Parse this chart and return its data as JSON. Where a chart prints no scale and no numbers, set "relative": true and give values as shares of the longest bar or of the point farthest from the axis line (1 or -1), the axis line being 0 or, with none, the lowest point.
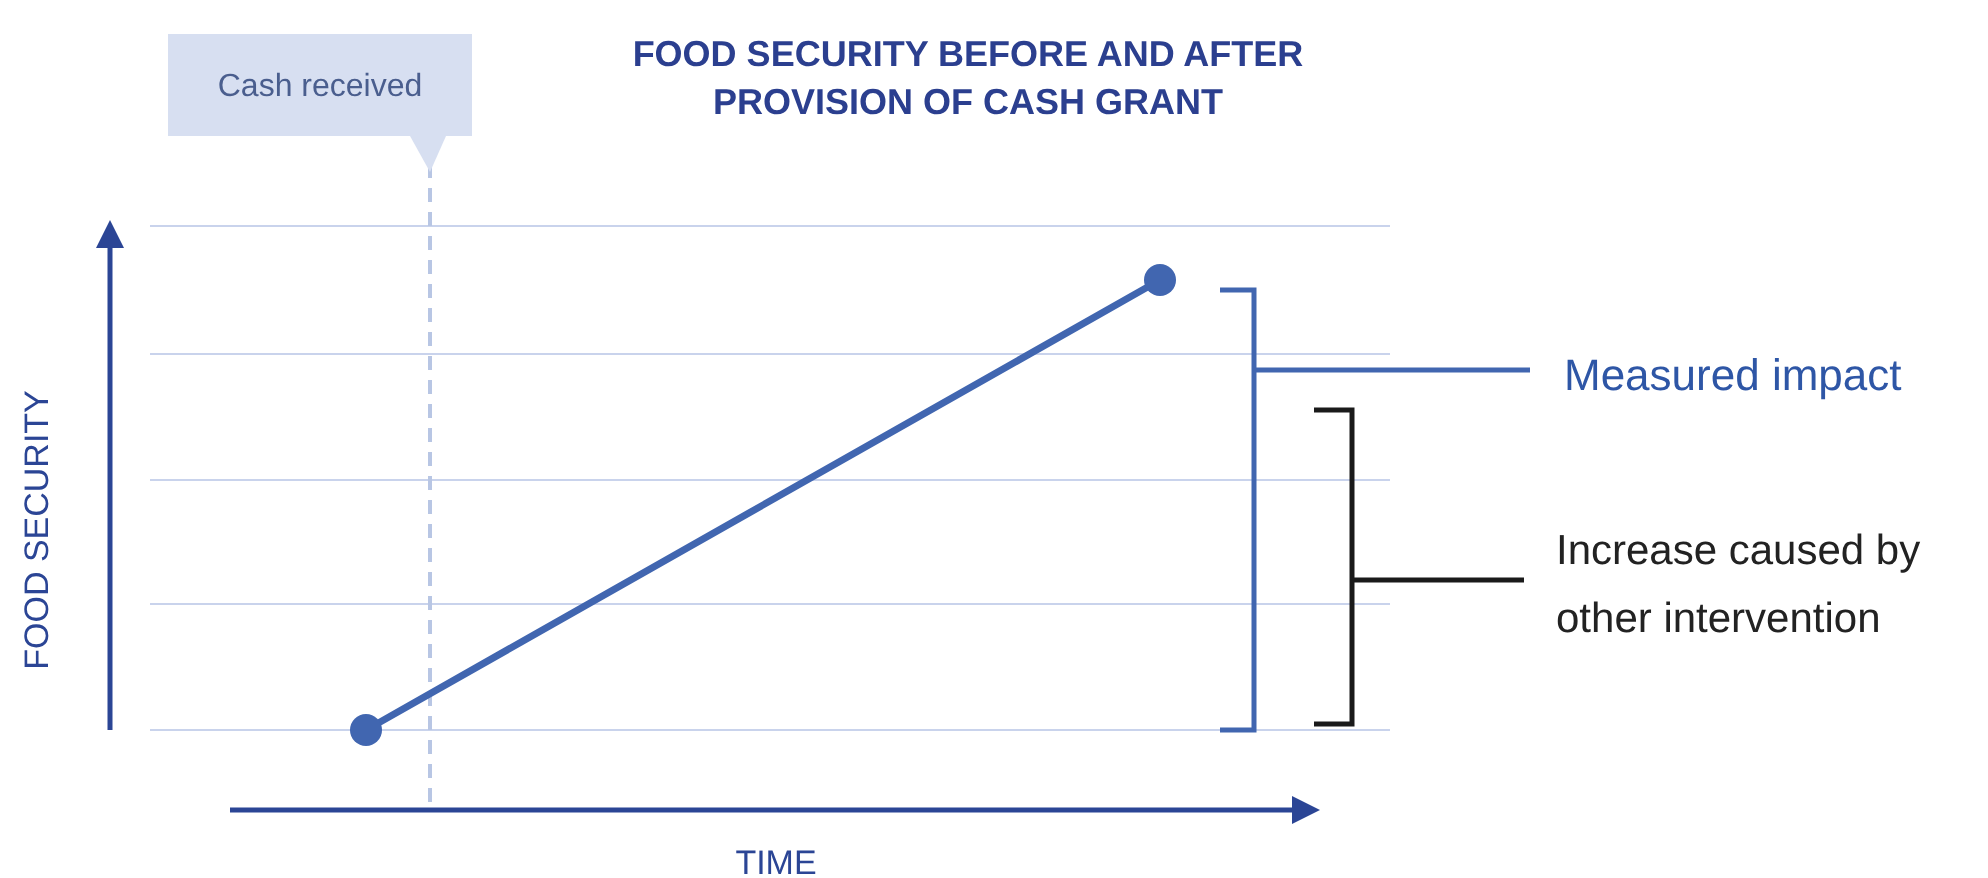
{
  "chart_data": {
    "type": "line",
    "title": "FOOD SECURITY BEFORE AND AFTER PROVISION OF CASH GRANT",
    "xlabel": "TIME",
    "ylabel": "FOOD SECURITY",
    "relative": true,
    "categories": [
      null,
      null
    ],
    "grid": "y",
    "marker": "circle",
    "line_style": "solid",
    "series": [
      {
        "color": "#4166b0",
        "values": [
          0,
          1
        ]
      }
    ],
    "ref_lines": [
      {
        "axis": "x",
        "label": "Cash received",
        "color": "#b8c6e4",
        "line_style": "dashed"
      }
    ],
    "annotations": [
      "Measured impact",
      "Increase caused by other intervention"
    ]
  }
}
